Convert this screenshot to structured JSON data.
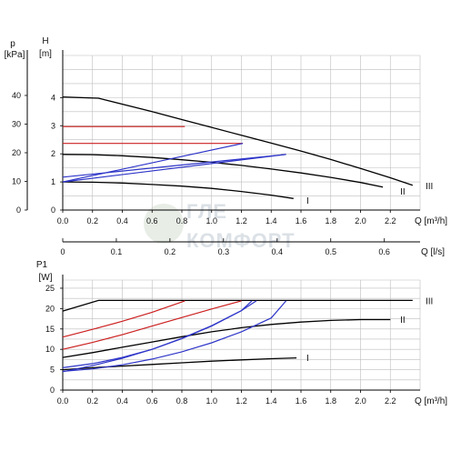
{
  "watermark": {
    "line1": "ГЛЕ",
    "line2": "КОМФОРТ"
  },
  "chart_data": [
    {
      "type": "line",
      "name": "head-curves",
      "xlabel": "Q [m³/h]",
      "ylabel_primary": "H",
      "ylabel_primary_unit": "[m]",
      "ylabel_secondary": "p",
      "ylabel_secondary_unit": "[kPa]",
      "xlim": [
        0,
        2.4
      ],
      "ylim": [
        0,
        5.5
      ],
      "x_ticks": [
        "0.0",
        "0.2",
        "0.4",
        "0.6",
        "0.8",
        "1.0",
        "1.2",
        "1.4",
        "1.6",
        "1.8",
        "2.0",
        "2.2"
      ],
      "y_ticks": [
        "0",
        "1",
        "2",
        "3",
        "4"
      ],
      "y2_ticks": [
        "0",
        "10",
        "20",
        "30",
        "40"
      ],
      "grid": true,
      "series": [
        {
          "name": "I",
          "color": "#000000",
          "label_at": [
            1.6,
            0.35
          ],
          "points": [
            [
              0,
              1.0
            ],
            [
              0.2,
              0.99
            ],
            [
              0.4,
              0.96
            ],
            [
              0.6,
              0.91
            ],
            [
              0.8,
              0.85
            ],
            [
              1.0,
              0.77
            ],
            [
              1.2,
              0.66
            ],
            [
              1.4,
              0.53
            ],
            [
              1.55,
              0.41
            ]
          ]
        },
        {
          "name": "II",
          "color": "#000000",
          "label_at": [
            2.23,
            0.68
          ],
          "points": [
            [
              0,
              1.98
            ],
            [
              0.2,
              1.97
            ],
            [
              0.4,
              1.93
            ],
            [
              0.6,
              1.87
            ],
            [
              0.8,
              1.79
            ],
            [
              1.0,
              1.7
            ],
            [
              1.2,
              1.59
            ],
            [
              1.4,
              1.46
            ],
            [
              1.6,
              1.32
            ],
            [
              1.8,
              1.16
            ],
            [
              2.0,
              0.98
            ],
            [
              2.15,
              0.82
            ]
          ]
        },
        {
          "name": "III",
          "color": "#000000",
          "label_at": [
            2.4,
            0.88
          ],
          "points": [
            [
              0,
              4.02
            ],
            [
              0.24,
              3.98
            ],
            [
              0.6,
              3.5
            ],
            [
              0.8,
              3.22
            ],
            [
              1.0,
              2.94
            ],
            [
              1.2,
              2.66
            ],
            [
              1.4,
              2.38
            ],
            [
              1.6,
              2.1
            ],
            [
              1.8,
              1.8
            ],
            [
              2.0,
              1.48
            ],
            [
              2.2,
              1.15
            ],
            [
              2.35,
              0.88
            ]
          ]
        },
        {
          "name": "",
          "color": "#cc1f1f",
          "points": [
            [
              0,
              2.97
            ],
            [
              0.82,
              2.97
            ]
          ]
        },
        {
          "name": "",
          "color": "#cc1f1f",
          "points": [
            [
              0,
              2.37
            ],
            [
              1.21,
              2.37
            ]
          ]
        },
        {
          "name": "",
          "color": "#2e35c8",
          "points": [
            [
              0,
              1.0
            ],
            [
              1.21,
              2.37
            ]
          ]
        },
        {
          "name": "",
          "color": "#2e35c8",
          "points": [
            [
              0,
              1.0
            ],
            [
              1.5,
              1.98
            ]
          ]
        },
        {
          "name": "",
          "color": "#2e35c8",
          "points": [
            [
              0,
              1.17
            ],
            [
              1.5,
              1.98
            ]
          ]
        }
      ]
    },
    {
      "type": "axis",
      "name": "flow-l-s-axis",
      "xlabel": "Q [l/s]",
      "xlim": [
        0,
        0.6667
      ],
      "x_ticks": [
        "0",
        "0.1",
        "0.2",
        "0.3",
        "0.4",
        "0.5",
        "0.6"
      ]
    },
    {
      "type": "line",
      "name": "power-curves",
      "xlabel": "Q [m³/h]",
      "ylabel": "P1",
      "ylabel_unit": "[W]",
      "xlim": [
        0,
        2.4
      ],
      "ylim": [
        0,
        27
      ],
      "x_ticks": [
        "0.0",
        "0.2",
        "0.4",
        "0.6",
        "0.8",
        "1.0",
        "1.2",
        "1.4",
        "1.6",
        "1.8",
        "2.0",
        "2.2"
      ],
      "y_ticks": [
        "0",
        "5",
        "10",
        "15",
        "20",
        "25"
      ],
      "grid": true,
      "series": [
        {
          "name": "I",
          "color": "#000000",
          "label_at": [
            1.6,
            8.0
          ],
          "points": [
            [
              0,
              5.0
            ],
            [
              0.2,
              5.5
            ],
            [
              0.4,
              5.9
            ],
            [
              0.6,
              6.3
            ],
            [
              0.8,
              6.7
            ],
            [
              1.0,
              7.1
            ],
            [
              1.2,
              7.4
            ],
            [
              1.4,
              7.7
            ],
            [
              1.57,
              7.9
            ]
          ]
        },
        {
          "name": "II",
          "color": "#000000",
          "label_at": [
            2.23,
            17.4
          ],
          "points": [
            [
              0,
              8.0
            ],
            [
              0.2,
              9.2
            ],
            [
              0.4,
              10.5
            ],
            [
              0.6,
              11.8
            ],
            [
              0.8,
              13.1
            ],
            [
              1.0,
              14.3
            ],
            [
              1.2,
              15.3
            ],
            [
              1.4,
              16.1
            ],
            [
              1.6,
              16.7
            ],
            [
              1.8,
              17.1
            ],
            [
              2.0,
              17.3
            ],
            [
              2.2,
              17.3
            ]
          ]
        },
        {
          "name": "III",
          "color": "#000000",
          "label_at": [
            2.4,
            22.0
          ],
          "points": [
            [
              0,
              19.4
            ],
            [
              0.24,
              22.0
            ],
            [
              2.35,
              22.0
            ]
          ]
        },
        {
          "name": "",
          "color": "#cc1f1f",
          "points": [
            [
              0,
              13.0
            ],
            [
              0.2,
              14.9
            ],
            [
              0.4,
              16.9
            ],
            [
              0.6,
              19.1
            ],
            [
              0.82,
              21.9
            ]
          ]
        },
        {
          "name": "",
          "color": "#cc1f1f",
          "points": [
            [
              0,
              10.0
            ],
            [
              0.2,
              11.7
            ],
            [
              0.4,
              13.6
            ],
            [
              0.6,
              15.7
            ],
            [
              0.8,
              17.8
            ],
            [
              1.0,
              19.9
            ],
            [
              1.2,
              21.9
            ]
          ]
        },
        {
          "name": "",
          "color": "#2e35c8",
          "points": [
            [
              0,
              5.5
            ],
            [
              0.2,
              6.5
            ],
            [
              0.4,
              8.0
            ],
            [
              0.6,
              10.0
            ],
            [
              0.8,
              12.6
            ],
            [
              1.0,
              15.7
            ],
            [
              1.2,
              19.5
            ],
            [
              1.3,
              21.9
            ]
          ]
        },
        {
          "name": "",
          "color": "#2e35c8",
          "points": [
            [
              0,
              4.6
            ],
            [
              0.2,
              5.2
            ],
            [
              0.4,
              6.2
            ],
            [
              0.6,
              7.6
            ],
            [
              0.8,
              9.4
            ],
            [
              1.0,
              11.6
            ],
            [
              1.2,
              14.3
            ],
            [
              1.4,
              17.7
            ],
            [
              1.5,
              21.9
            ]
          ]
        },
        {
          "name": "",
          "color": "#2e35c8",
          "points": [
            [
              0,
              4.5
            ],
            [
              0.2,
              6.0
            ],
            [
              0.4,
              7.8
            ],
            [
              0.6,
              10.0
            ],
            [
              0.8,
              12.7
            ],
            [
              1.0,
              15.8
            ],
            [
              1.2,
              19.5
            ],
            [
              1.27,
              21.9
            ]
          ]
        }
      ]
    }
  ]
}
